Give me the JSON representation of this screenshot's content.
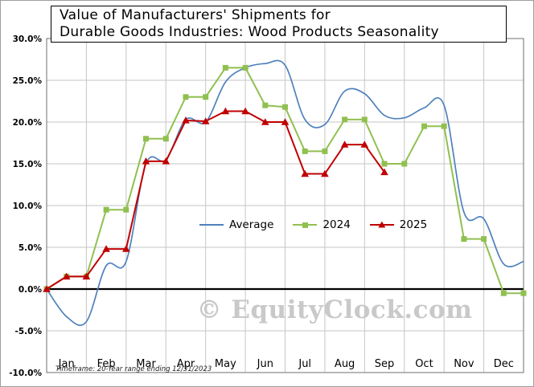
{
  "title": {
    "line1": "Value of Manufacturers' Shipments for",
    "line2": "Durable Goods Industries: Wood Products Seasonality"
  },
  "watermark": {
    "text": "© EquityClock.com",
    "color": "#c9c9c9"
  },
  "footer": {
    "timeframe": "Timeframe: 20-Year range ending 12/31/2023"
  },
  "axes": {
    "y_tick_labels": [
      "30.0%",
      "25.0%",
      "20.0%",
      "15.0%",
      "10.0%",
      "5.0%",
      "0.0%",
      "-5.0%",
      "-10.0%"
    ],
    "month_labels": [
      "Jan",
      "Feb",
      "Mar",
      "Apr",
      "May",
      "Jun",
      "Jul",
      "Aug",
      "Sep",
      "Oct",
      "Nov",
      "Dec"
    ]
  },
  "colors": {
    "background": "#ffffff",
    "grid": "#c6c6c6",
    "zero_line": "#000000",
    "plot_border": "#6f6f6f",
    "axis_text": "#000000"
  },
  "chart_data": {
    "type": "line",
    "title": "Value of Manufacturers' Shipments for Durable Goods Industries: Wood Products Seasonality",
    "x_unit": "semi-monthly points (1st and 15th of each month, Jan through Dec 31)",
    "y_format": "percent",
    "ylim": [
      -10,
      30
    ],
    "y_ticks": [
      30,
      25,
      20,
      15,
      10,
      5,
      0,
      -5,
      -10
    ],
    "grid": true,
    "legend_position": "center",
    "points_per_series_max": 25,
    "series": [
      {
        "name": "Average",
        "color": "#4f81bd",
        "marker": "none",
        "smooth": true,
        "values": [
          0.0,
          -3.3,
          -3.9,
          2.8,
          3.3,
          15.0,
          15.5,
          20.3,
          20.0,
          24.8,
          26.5,
          27.0,
          26.8,
          20.3,
          19.7,
          23.7,
          23.4,
          20.8,
          20.5,
          21.7,
          22.0,
          9.2,
          8.4,
          3.0,
          3.3
        ]
      },
      {
        "name": "2024",
        "color": "#90c050",
        "marker": "square",
        "smooth": false,
        "values": [
          0.0,
          1.5,
          1.5,
          9.5,
          9.5,
          18.0,
          18.0,
          23.0,
          23.0,
          26.5,
          26.5,
          22.0,
          21.8,
          16.5,
          16.5,
          20.3,
          20.3,
          15.0,
          15.0,
          19.5,
          19.5,
          6.0,
          6.0,
          -0.5,
          -0.5
        ]
      },
      {
        "name": "2025",
        "color": "#c00000",
        "marker": "triangle",
        "smooth": false,
        "values": [
          0.0,
          1.5,
          1.5,
          4.8,
          4.8,
          15.3,
          15.3,
          20.2,
          20.1,
          21.3,
          21.3,
          20.0,
          20.0,
          13.8,
          13.8,
          17.3,
          17.3,
          14.0
        ]
      }
    ]
  }
}
